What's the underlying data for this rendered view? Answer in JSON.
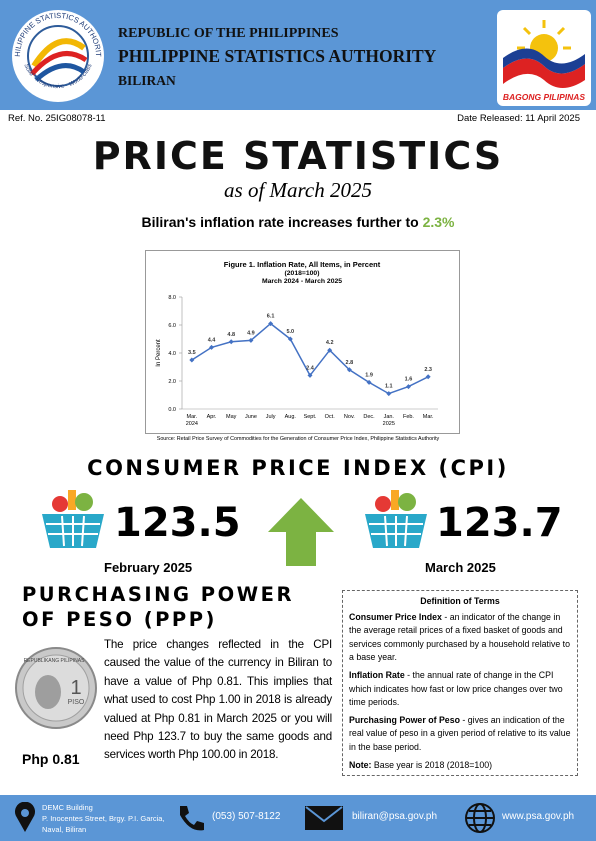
{
  "header": {
    "seal_top": "PHILIPPINE STATISTICS AUTHORITY",
    "seal_bottom": "Solid · Responsive · World-class",
    "line1": "REPUBLIC OF THE PHILIPPINES",
    "line2": "PHILIPPINE STATISTICS AUTHORITY",
    "line3": "BILIRAN",
    "logo_text": "BAGONG PILIPINAS"
  },
  "ref_no": "Ref. No. 25IG08078-11",
  "date_released": "Date Released: 11 April 2025",
  "title": "PRICE STATISTICS",
  "subtitle": "as of March 2025",
  "headline": "Biliran's inflation rate increases further to ",
  "headline_value": "2.3%",
  "chart": {
    "type": "line",
    "title": [
      "Figure 1. Inflation Rate, All Items, in Percent",
      "(2018=100)",
      "March 2024 - March 2025"
    ],
    "ylabel": "In Percent",
    "categories": [
      "Mar.",
      "Apr.",
      "May",
      "June",
      "July",
      "Aug.",
      "Sept.",
      "Oct.",
      "Nov.",
      "Dec.",
      "Jan.",
      "Feb.",
      "Mar."
    ],
    "years": [
      "2024",
      "2025"
    ],
    "values": [
      3.5,
      4.4,
      4.8,
      4.9,
      6.1,
      5.0,
      2.4,
      4.2,
      2.8,
      1.9,
      1.1,
      1.6,
      2.3
    ],
    "value_labels": [
      "3.5",
      "4.4",
      "4.8",
      "4.9",
      "6.1",
      "5.0",
      "2.4",
      "4.2",
      "2.8",
      "1.9",
      "1.1",
      "1.6",
      "2.3"
    ],
    "color": "#4472c4",
    "ylim": [
      0,
      8
    ],
    "yticks": [
      {
        "value": 0,
        "label": "0.0"
      },
      {
        "value": 2,
        "label": "2.0"
      },
      {
        "value": 4,
        "label": "4.0"
      },
      {
        "value": 6,
        "label": "6.0"
      },
      {
        "value": 8,
        "label": "8.0"
      }
    ],
    "source": "Source: Retail Price Survey of Commodities for the Generation of Consumer Price Index, Philippine Statistics Authority"
  },
  "cpi": {
    "heading": "CONSUMER PRICE INDEX (CPI)",
    "previous": {
      "value": "123.5",
      "label": "February 2025"
    },
    "current": {
      "value": "123.7",
      "label": "March 2025"
    }
  },
  "ppp": {
    "heading": [
      "PURCHASING POWER",
      "OF PESO (PPP)"
    ],
    "coin": [
      "REPUBLIKANG PILIPINAS",
      "1",
      "PISO"
    ],
    "value": "Php 0.81",
    "text": "The price changes reflected in the CPI caused the value of the currency in Biliran to have a value of Php 0.81. This implies that what used to cost Php 1.00 in 2018 is already valued at Php 0.81 in March 2025 or you will need  Php 123.7 to buy the same goods and services worth Php 100.00 in 2018."
  },
  "definitions": {
    "title": "Definition of Terms",
    "items": [
      {
        "term": "Consumer Price Index",
        "text": " - an indicator of the change in the average retail prices of a fixed basket of goods and services commonly purchased by a household relative to a base year."
      },
      {
        "term": "Inflation Rate",
        "text": " - the annual rate of change in the CPI which indicates how fast or low price changes over two time periods."
      },
      {
        "term": "Purchasing Power of Peso",
        "text": " - gives an indication of the real value of peso in a given period of relative to its value in the base period."
      },
      {
        "term": "Note:",
        "text": " Base year is 2018 (2018=100)"
      }
    ]
  },
  "footer": {
    "address": [
      "DEMC Building",
      "P. Inocentes Street, Brgy. P.I. Garcia,",
      "Naval, Biliran"
    ],
    "phone": "(053) 507-8122",
    "email": "biliran@psa.gov.ph",
    "web": "www.psa.gov.ph"
  }
}
